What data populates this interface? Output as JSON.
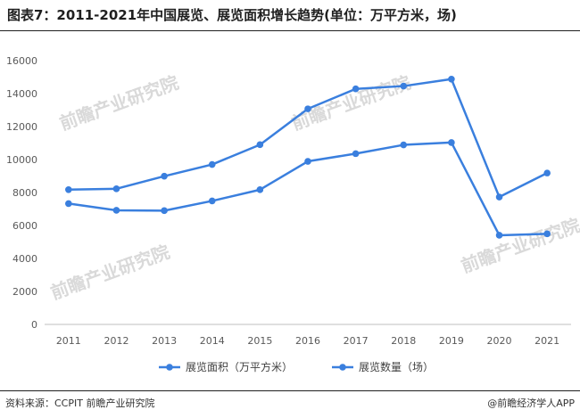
{
  "title": "图表7：2011-2021年中国展览、展览面积增长趋势(单位：万平方米，场)",
  "source": "资料来源：CCPIT 前瞻产业研究院",
  "brand": "@前瞻经济学人APP",
  "watermark": "前瞻产业研究院",
  "colors": {
    "series": "#3a7fde",
    "axis": "#bfbfbf",
    "grid": "#e6e6e6"
  },
  "chart_data": {
    "type": "line",
    "title": "图表7：2011-2021年中国展览、展览面积增长趋势(单位：万平方米，场)",
    "categories": [
      "2011",
      "2012",
      "2013",
      "2014",
      "2015",
      "2016",
      "2017",
      "2018",
      "2019",
      "2020",
      "2021"
    ],
    "series": [
      {
        "name": "展览面积（万平方米）",
        "values": [
          8173,
          8225,
          8990,
          9700,
          10900,
          13075,
          14285,
          14456,
          14877,
          7727,
          9182
        ]
      },
      {
        "name": "展览数量（场）",
        "values": [
          7330,
          6920,
          6900,
          7490,
          8170,
          9890,
          10358,
          10889,
          11033,
          5408,
          5494
        ]
      }
    ],
    "ylim": [
      0,
      16000
    ],
    "yticks": [
      0,
      2000,
      4000,
      6000,
      8000,
      10000,
      12000,
      14000,
      16000
    ],
    "grid": false,
    "legend": "bottom"
  }
}
